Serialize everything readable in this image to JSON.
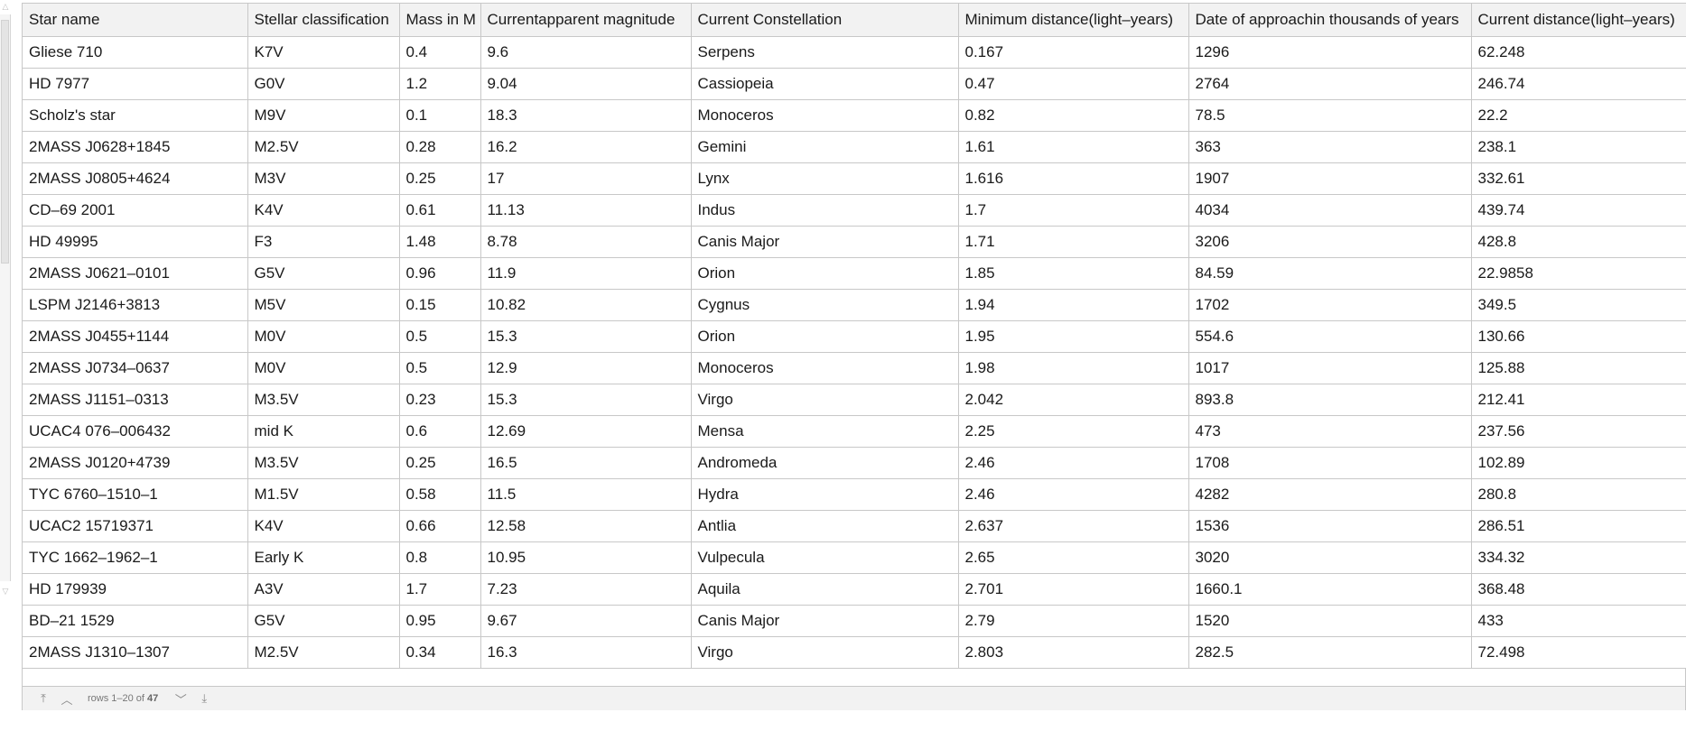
{
  "table": {
    "columns": [
      "Star name",
      "Stellar classification",
      "Mass in M",
      "Currentapparent magnitude",
      "Current Constellation",
      "Minimum distance(light–years)",
      "Date of approachin thousands of years",
      "Current distance(light–years)"
    ],
    "rows": [
      [
        "Gliese 710",
        "K7V",
        "0.4",
        "9.6",
        "Serpens",
        "0.167",
        "1296",
        "62.248"
      ],
      [
        "HD 7977",
        "G0V",
        "1.2",
        "9.04",
        "Cassiopeia",
        "0.47",
        "2764",
        "246.74"
      ],
      [
        "Scholz's star",
        "M9V",
        "0.1",
        "18.3",
        "Monoceros",
        "0.82",
        "78.5",
        "22.2"
      ],
      [
        "2MASS J0628+1845",
        "M2.5V",
        "0.28",
        "16.2",
        "Gemini",
        "1.61",
        "363",
        "238.1"
      ],
      [
        "2MASS J0805+4624",
        "M3V",
        "0.25",
        "17",
        "Lynx",
        "1.616",
        "1907",
        "332.61"
      ],
      [
        "CD–69 2001",
        "K4V",
        "0.61",
        "11.13",
        "Indus",
        "1.7",
        "4034",
        "439.74"
      ],
      [
        "HD 49995",
        "F3",
        "1.48",
        "8.78",
        "Canis Major",
        "1.71",
        "3206",
        "428.8"
      ],
      [
        "2MASS J0621–0101",
        "G5V",
        "0.96",
        "11.9",
        "Orion",
        "1.85",
        "84.59",
        "22.9858"
      ],
      [
        "LSPM J2146+3813",
        "M5V",
        "0.15",
        "10.82",
        "Cygnus",
        "1.94",
        "1702",
        "349.5"
      ],
      [
        "2MASS J0455+1144",
        "M0V",
        "0.5",
        "15.3",
        "Orion",
        "1.95",
        "554.6",
        "130.66"
      ],
      [
        "2MASS J0734–0637",
        "M0V",
        "0.5",
        "12.9",
        "Monoceros",
        "1.98",
        "1017",
        "125.88"
      ],
      [
        "2MASS J1151–0313",
        "M3.5V",
        "0.23",
        "15.3",
        "Virgo",
        "2.042",
        "893.8",
        "212.41"
      ],
      [
        "UCAC4 076–006432",
        "mid K",
        "0.6",
        "12.69",
        "Mensa",
        "2.25",
        "473",
        "237.56"
      ],
      [
        "2MASS J0120+4739",
        "M3.5V",
        "0.25",
        "16.5",
        "Andromeda",
        "2.46",
        "1708",
        "102.89"
      ],
      [
        "TYC 6760–1510–1",
        "M1.5V",
        "0.58",
        "11.5",
        "Hydra",
        "2.46",
        "4282",
        "280.8"
      ],
      [
        "UCAC2 15719371",
        "K4V",
        "0.66",
        "12.58",
        "Antlia",
        "2.637",
        "1536",
        "286.51"
      ],
      [
        "TYC 1662–1962–1",
        "Early K",
        "0.8",
        "10.95",
        "Vulpecula",
        "2.65",
        "3020",
        "334.32"
      ],
      [
        "HD 179939",
        "A3V",
        "1.7",
        "7.23",
        "Aquila",
        "2.701",
        "1660.1",
        "368.48"
      ],
      [
        "BD–21 1529",
        "G5V",
        "0.95",
        "9.67",
        "Canis Major",
        "2.79",
        "1520",
        "433"
      ],
      [
        "2MASS J1310–1307",
        "M2.5V",
        "0.34",
        "16.3",
        "Virgo",
        "2.803",
        "282.5",
        "72.498"
      ]
    ]
  },
  "pagination": {
    "rows_prefix": "rows 1–20 of ",
    "total": "47",
    "first_icon": "⤒",
    "prev_icon": "︿",
    "next_icon": "﹀",
    "last_icon": "⤓"
  },
  "scrollbar": {
    "up_icon": "△",
    "down_icon": "▽"
  }
}
